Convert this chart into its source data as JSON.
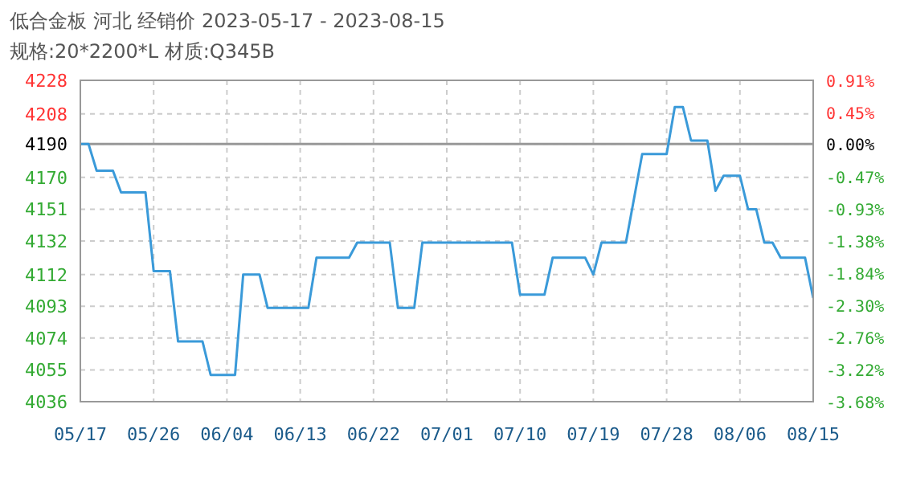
{
  "chart_data": {
    "type": "line",
    "title": "低合金板 河北 经销价 2023-05-17 - 2023-08-15",
    "subtitle": "规格:20*2200*L 材质:Q345B",
    "x": [
      "2023-05-17",
      "2023-05-18",
      "2023-05-19",
      "2023-05-21",
      "2023-05-22",
      "2023-05-25",
      "2023-05-26",
      "2023-05-28",
      "2023-05-29",
      "2023-06-01",
      "2023-06-02",
      "2023-06-05",
      "2023-06-06",
      "2023-06-08",
      "2023-06-09",
      "2023-06-14",
      "2023-06-15",
      "2023-06-19",
      "2023-06-20",
      "2023-06-24",
      "2023-06-25",
      "2023-06-27",
      "2023-06-28",
      "2023-07-09",
      "2023-07-10",
      "2023-07-13",
      "2023-07-14",
      "2023-07-18",
      "2023-07-19",
      "2023-07-20",
      "2023-07-23",
      "2023-07-25",
      "2023-07-28",
      "2023-07-29",
      "2023-07-30",
      "2023-07-31",
      "2023-08-02",
      "2023-08-03",
      "2023-08-04",
      "2023-08-06",
      "2023-08-07",
      "2023-08-08",
      "2023-08-09",
      "2023-08-10",
      "2023-08-11",
      "2023-08-14",
      "2023-08-15"
    ],
    "series": [
      {
        "color": "#3a9ad9",
        "values": [
          4190,
          4190,
          4174,
          4174,
          4161,
          4161,
          4114,
          4114,
          4072,
          4072,
          4052,
          4052,
          4112,
          4112,
          4092,
          4092,
          4122,
          4122,
          4131,
          4131,
          4092,
          4092,
          4131,
          4131,
          4100,
          4100,
          4122,
          4122,
          4112,
          4131,
          4131,
          4184,
          4184,
          4212,
          4212,
          4192,
          4192,
          4162,
          4171,
          4171,
          4151,
          4151,
          4131,
          4131,
          4122,
          4122,
          4098
        ]
      }
    ],
    "xlim": [
      "2023-05-17",
      "2023-08-15"
    ],
    "xticks": [
      {
        "value": "2023-05-17",
        "label": "05/17"
      },
      {
        "value": "2023-05-26",
        "label": "05/26"
      },
      {
        "value": "2023-06-04",
        "label": "06/04"
      },
      {
        "value": "2023-06-13",
        "label": "06/13"
      },
      {
        "value": "2023-06-22",
        "label": "06/22"
      },
      {
        "value": "2023-07-01",
        "label": "07/01"
      },
      {
        "value": "2023-07-10",
        "label": "07/10"
      },
      {
        "value": "2023-07-19",
        "label": "07/19"
      },
      {
        "value": "2023-07-28",
        "label": "07/28"
      },
      {
        "value": "2023-08-06",
        "label": "08/06"
      },
      {
        "value": "2023-08-15",
        "label": "08/15"
      }
    ],
    "ylim": [
      4036,
      4228
    ],
    "yticks": [
      4036,
      4055,
      4074,
      4093,
      4112,
      4132,
      4151,
      4170,
      4190,
      4208,
      4228
    ],
    "y2lim": [
      -3.68,
      0.91
    ],
    "y2ticks": [
      {
        "value": -3.68,
        "label": "-3.68%"
      },
      {
        "value": -3.22,
        "label": "-3.22%"
      },
      {
        "value": -2.76,
        "label": "-2.76%"
      },
      {
        "value": -2.3,
        "label": "-2.30%"
      },
      {
        "value": -1.84,
        "label": "-1.84%"
      },
      {
        "value": -1.38,
        "label": "-1.38%"
      },
      {
        "value": -0.93,
        "label": "-0.93%"
      },
      {
        "value": -0.47,
        "label": "-0.47%"
      },
      {
        "value": 0,
        "label": "0.00%"
      },
      {
        "value": 0.45,
        "label": "0.45%"
      },
      {
        "value": 0.91,
        "label": "0.91%"
      }
    ],
    "ref_lines": [
      {
        "axis": "y",
        "value": 4190,
        "color": "#999999"
      }
    ],
    "grid": true,
    "marker": "none",
    "line_style": "solid"
  }
}
